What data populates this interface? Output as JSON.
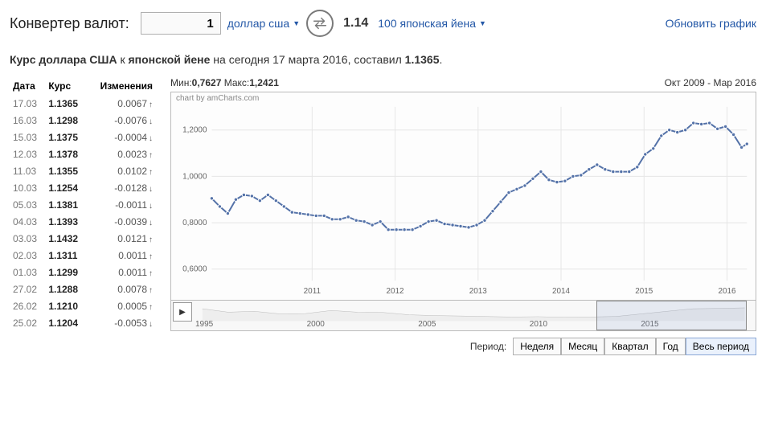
{
  "converter": {
    "label": "Конвертер валют:",
    "amount": "1",
    "from_label": "доллар сша",
    "to_label": "100 японская йена",
    "result": "1.14",
    "refresh_label": "Обновить график"
  },
  "intro": {
    "prefix": "Курс доллара США",
    "mid": " к ",
    "bold2": "японской йене",
    "rest": " на сегодня 17 марта 2016, составил ",
    "value": "1.1365",
    "dot": "."
  },
  "table": {
    "headers": {
      "date": "Дата",
      "rate": "Курс",
      "change": "Изменения"
    },
    "rows": [
      {
        "date": "17.03",
        "rate": "1.1365",
        "change": "0.0067",
        "dir": "up"
      },
      {
        "date": "16.03",
        "rate": "1.1298",
        "change": "-0.0076",
        "dir": "down"
      },
      {
        "date": "15.03",
        "rate": "1.1375",
        "change": "-0.0004",
        "dir": "down"
      },
      {
        "date": "12.03",
        "rate": "1.1378",
        "change": "0.0023",
        "dir": "up"
      },
      {
        "date": "11.03",
        "rate": "1.1355",
        "change": "0.0102",
        "dir": "up"
      },
      {
        "date": "10.03",
        "rate": "1.1254",
        "change": "-0.0128",
        "dir": "down"
      },
      {
        "date": "05.03",
        "rate": "1.1381",
        "change": "-0.0011",
        "dir": "down"
      },
      {
        "date": "04.03",
        "rate": "1.1393",
        "change": "-0.0039",
        "dir": "down"
      },
      {
        "date": "03.03",
        "rate": "1.1432",
        "change": "0.0121",
        "dir": "up"
      },
      {
        "date": "02.03",
        "rate": "1.1311",
        "change": "0.0011",
        "dir": "up"
      },
      {
        "date": "01.03",
        "rate": "1.1299",
        "change": "0.0011",
        "dir": "up"
      },
      {
        "date": "27.02",
        "rate": "1.1288",
        "change": "0.0078",
        "dir": "up"
      },
      {
        "date": "26.02",
        "rate": "1.1210",
        "change": "0.0005",
        "dir": "up"
      },
      {
        "date": "25.02",
        "rate": "1.1204",
        "change": "-0.0053",
        "dir": "down"
      }
    ]
  },
  "chart": {
    "min_label": "Мин:",
    "min_value": "0,7627",
    "max_label": "Макс:",
    "max_value": "1,2421",
    "range_label": "Окт 2009 - Мар 2016",
    "credit": "chart by amCharts.com",
    "type": "line",
    "y_ticks": [
      "0,6000",
      "0,8000",
      "1,0000",
      "1,2000"
    ],
    "x_ticks": [
      "2011",
      "2012",
      "2013",
      "2014",
      "2015",
      "2016"
    ],
    "ylim": [
      0.55,
      1.3
    ],
    "series_color": "#5472a8",
    "grid_color": "#e6e6e6",
    "background_color": "#fdfdfd",
    "data": [
      {
        "x": 0.0,
        "y": 0.905
      },
      {
        "x": 0.015,
        "y": 0.87
      },
      {
        "x": 0.03,
        "y": 0.84
      },
      {
        "x": 0.045,
        "y": 0.9
      },
      {
        "x": 0.06,
        "y": 0.92
      },
      {
        "x": 0.075,
        "y": 0.915
      },
      {
        "x": 0.09,
        "y": 0.895
      },
      {
        "x": 0.105,
        "y": 0.92
      },
      {
        "x": 0.12,
        "y": 0.895
      },
      {
        "x": 0.135,
        "y": 0.87
      },
      {
        "x": 0.15,
        "y": 0.845
      },
      {
        "x": 0.165,
        "y": 0.84
      },
      {
        "x": 0.18,
        "y": 0.835
      },
      {
        "x": 0.195,
        "y": 0.83
      },
      {
        "x": 0.21,
        "y": 0.83
      },
      {
        "x": 0.225,
        "y": 0.815
      },
      {
        "x": 0.24,
        "y": 0.815
      },
      {
        "x": 0.255,
        "y": 0.825
      },
      {
        "x": 0.27,
        "y": 0.81
      },
      {
        "x": 0.285,
        "y": 0.805
      },
      {
        "x": 0.3,
        "y": 0.79
      },
      {
        "x": 0.315,
        "y": 0.805
      },
      {
        "x": 0.33,
        "y": 0.77
      },
      {
        "x": 0.345,
        "y": 0.77
      },
      {
        "x": 0.36,
        "y": 0.77
      },
      {
        "x": 0.375,
        "y": 0.77
      },
      {
        "x": 0.39,
        "y": 0.785
      },
      {
        "x": 0.405,
        "y": 0.805
      },
      {
        "x": 0.42,
        "y": 0.81
      },
      {
        "x": 0.435,
        "y": 0.795
      },
      {
        "x": 0.45,
        "y": 0.79
      },
      {
        "x": 0.465,
        "y": 0.785
      },
      {
        "x": 0.48,
        "y": 0.78
      },
      {
        "x": 0.495,
        "y": 0.79
      },
      {
        "x": 0.51,
        "y": 0.81
      },
      {
        "x": 0.525,
        "y": 0.85
      },
      {
        "x": 0.54,
        "y": 0.89
      },
      {
        "x": 0.555,
        "y": 0.93
      },
      {
        "x": 0.57,
        "y": 0.945
      },
      {
        "x": 0.585,
        "y": 0.96
      },
      {
        "x": 0.6,
        "y": 0.99
      },
      {
        "x": 0.615,
        "y": 1.02
      },
      {
        "x": 0.63,
        "y": 0.985
      },
      {
        "x": 0.645,
        "y": 0.975
      },
      {
        "x": 0.66,
        "y": 0.98
      },
      {
        "x": 0.675,
        "y": 1.0
      },
      {
        "x": 0.69,
        "y": 1.005
      },
      {
        "x": 0.705,
        "y": 1.03
      },
      {
        "x": 0.72,
        "y": 1.05
      },
      {
        "x": 0.735,
        "y": 1.03
      },
      {
        "x": 0.75,
        "y": 1.02
      },
      {
        "x": 0.765,
        "y": 1.02
      },
      {
        "x": 0.78,
        "y": 1.02
      },
      {
        "x": 0.795,
        "y": 1.04
      },
      {
        "x": 0.81,
        "y": 1.095
      },
      {
        "x": 0.825,
        "y": 1.12
      },
      {
        "x": 0.84,
        "y": 1.175
      },
      {
        "x": 0.855,
        "y": 1.2
      },
      {
        "x": 0.87,
        "y": 1.19
      },
      {
        "x": 0.885,
        "y": 1.2
      },
      {
        "x": 0.9,
        "y": 1.23
      },
      {
        "x": 0.915,
        "y": 1.225
      },
      {
        "x": 0.93,
        "y": 1.23
      },
      {
        "x": 0.945,
        "y": 1.205
      },
      {
        "x": 0.96,
        "y": 1.215
      },
      {
        "x": 0.975,
        "y": 1.18
      },
      {
        "x": 0.99,
        "y": 1.125
      },
      {
        "x": 1.0,
        "y": 1.14
      }
    ]
  },
  "scrubber": {
    "labels": [
      "1995",
      "2000",
      "2005",
      "2010",
      "2015"
    ],
    "window_start_pct": 72,
    "window_width_pct": 27
  },
  "period": {
    "label": "Период:",
    "options": [
      "Неделя",
      "Месяц",
      "Квартал",
      "Год",
      "Весь период"
    ],
    "active_index": 4
  }
}
